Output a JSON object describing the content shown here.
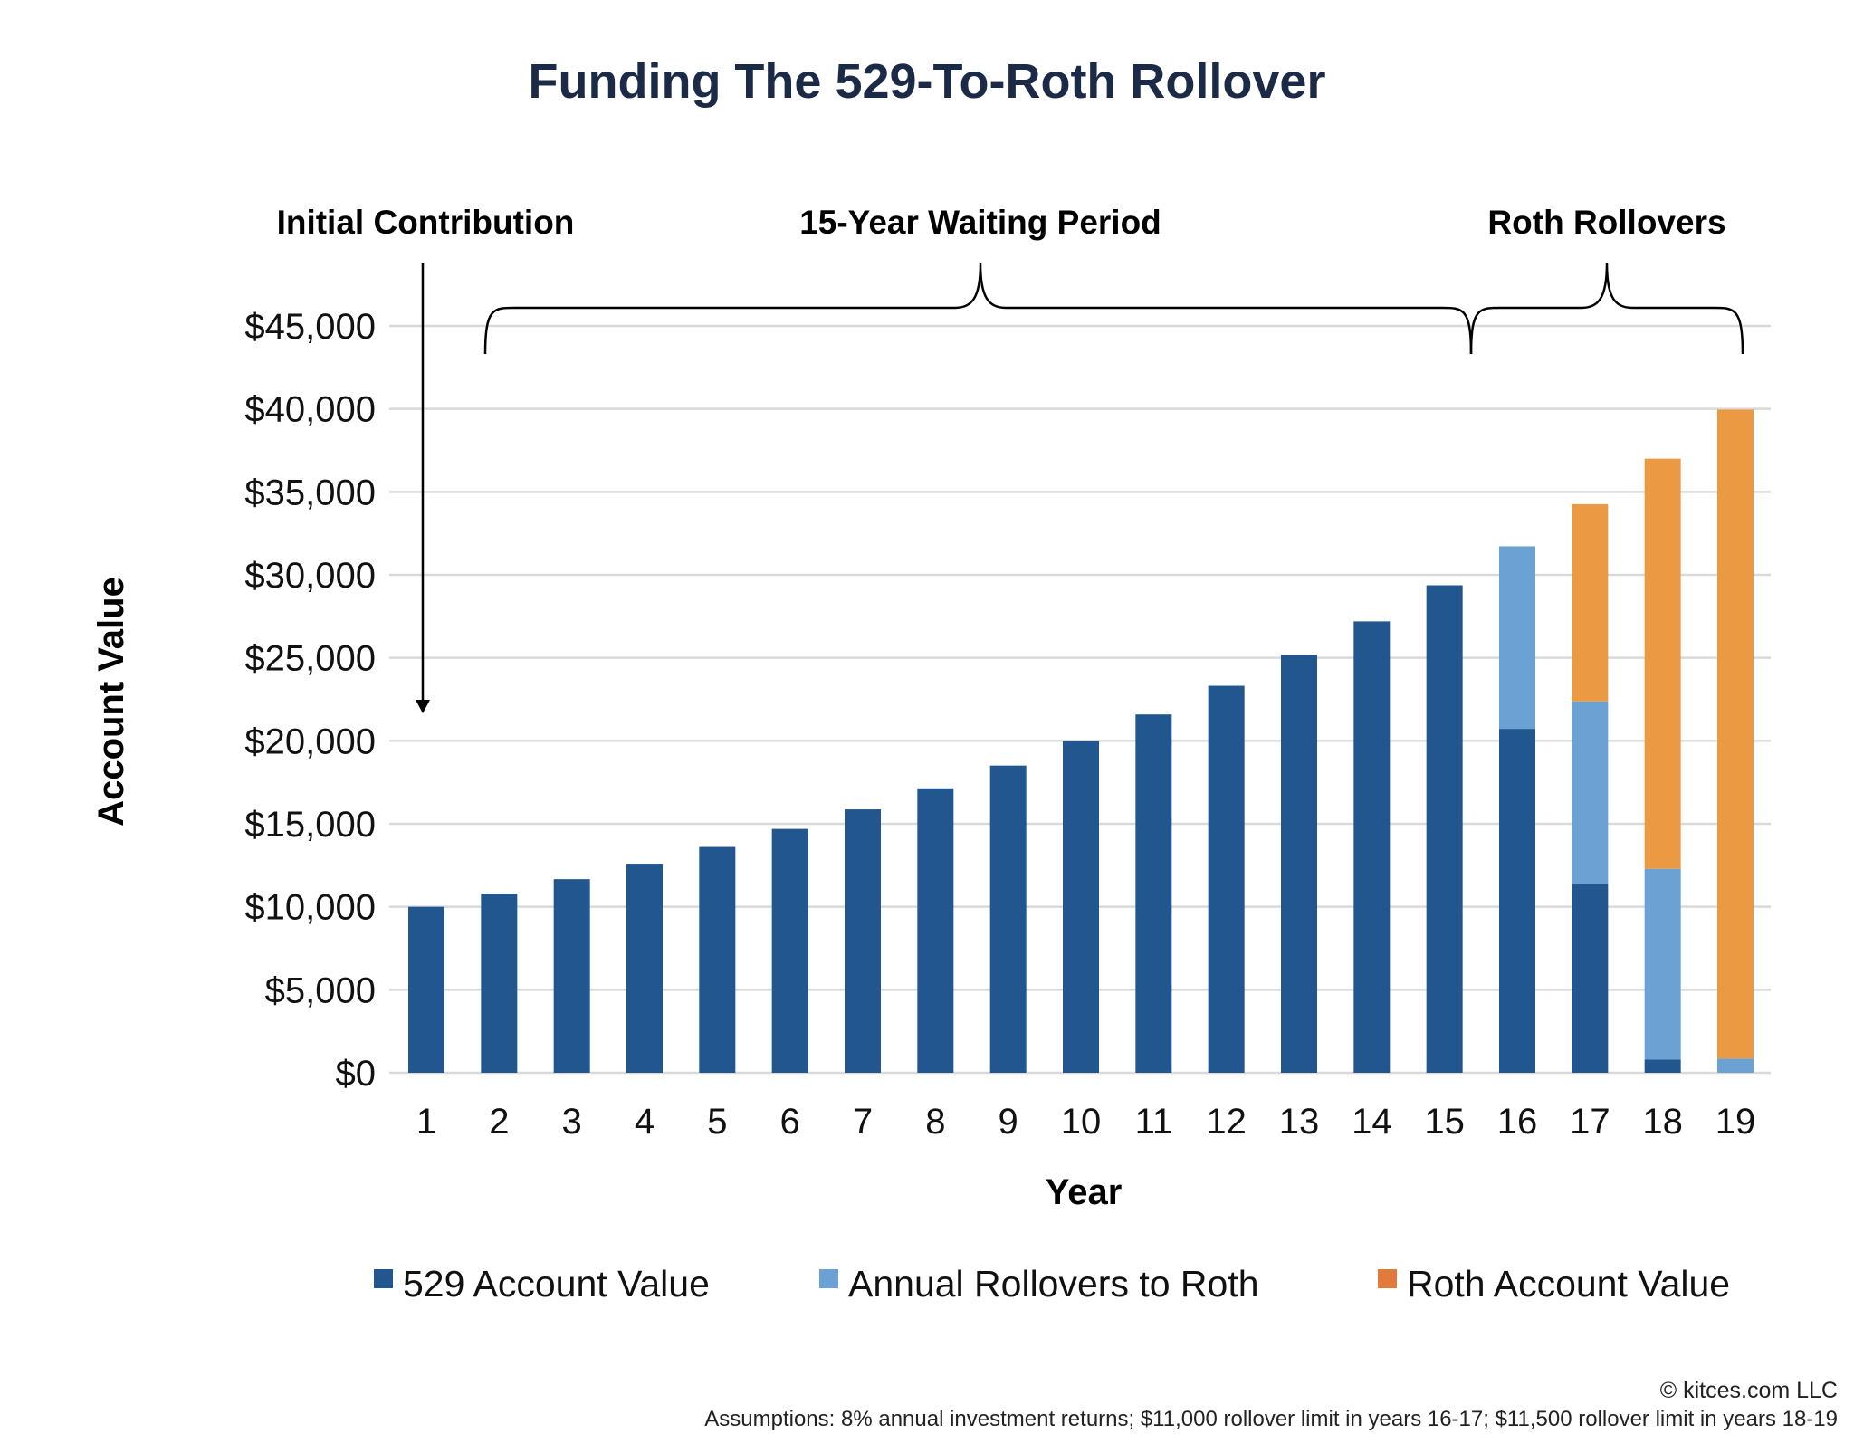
{
  "chart_data": {
    "type": "bar",
    "stacked": true,
    "title": "Funding The 529-To-Roth Rollover",
    "xlabel": "Year",
    "ylabel": "Account Value",
    "ylim": [
      0,
      45000
    ],
    "yticks": [
      0,
      5000,
      10000,
      15000,
      20000,
      25000,
      30000,
      35000,
      40000,
      45000
    ],
    "ytick_labels": [
      "$0",
      "$5,000",
      "$10,000",
      "$15,000",
      "$20,000",
      "$25,000",
      "$30,000",
      "$35,000",
      "$40,000",
      "$45,000"
    ],
    "grid": true,
    "legend_position": "bottom",
    "categories": [
      "1",
      "2",
      "3",
      "4",
      "5",
      "6",
      "7",
      "8",
      "9",
      "10",
      "11",
      "12",
      "13",
      "14",
      "15",
      "16",
      "17",
      "18",
      "19"
    ],
    "series": [
      {
        "name": "529 Account Value",
        "color": "#21568e",
        "legend_color": "#21568e",
        "values": [
          10000,
          10800,
          11664,
          12597,
          13605,
          14693,
          15869,
          17138,
          18509,
          19990,
          21589,
          23316,
          25182,
          27196,
          29372,
          20722,
          11380,
          790,
          0
        ]
      },
      {
        "name": "Annual Rollovers to Roth",
        "color": "#6ca1d4",
        "legend_color": "#6ca1d4",
        "values": [
          0,
          0,
          0,
          0,
          0,
          0,
          0,
          0,
          0,
          0,
          0,
          0,
          0,
          0,
          0,
          11000,
          11000,
          11500,
          853
        ]
      },
      {
        "name": "Roth Account Value",
        "color": "#eb9a43",
        "legend_color": "#e07b3c",
        "values": [
          0,
          0,
          0,
          0,
          0,
          0,
          0,
          0,
          0,
          0,
          0,
          0,
          0,
          0,
          0,
          0,
          11880,
          24710,
          39107
        ]
      }
    ],
    "annotations": [
      {
        "text": "Initial Contribution",
        "type": "arrow",
        "year": "1"
      },
      {
        "text": "15-Year Waiting Period",
        "type": "brace",
        "from_year": "1",
        "to_year": "15"
      },
      {
        "text": "Roth Rollovers",
        "type": "brace",
        "from_year": "16",
        "to_year": "19"
      }
    ]
  },
  "footer": {
    "copyright": "© kitces.com LLC",
    "assumptions": "Assumptions: 8% annual investment returns; $11,000 rollover limit in years 16-17; $11,500 rollover limit in years 18-19"
  }
}
